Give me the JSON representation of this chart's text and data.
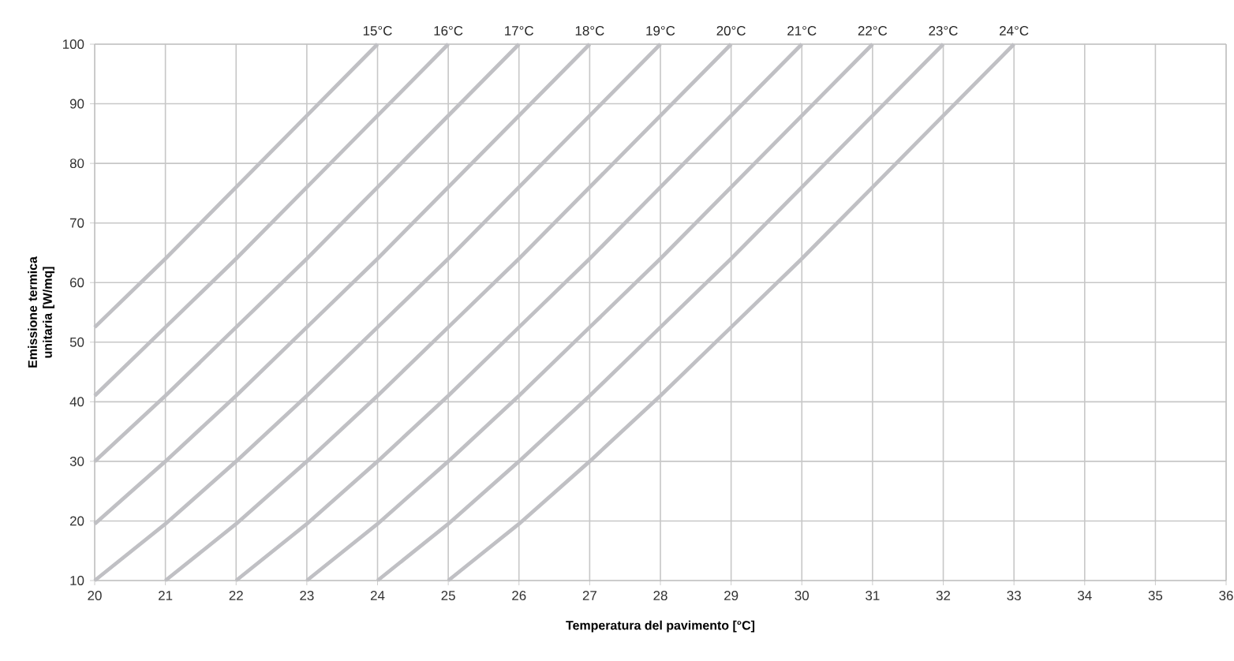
{
  "chart_data": {
    "type": "line",
    "xlabel": "Temperatura del pavimento [°C]",
    "ylabel": "Emissione termica unitaria [W/mq]",
    "xlim": [
      20,
      36
    ],
    "xticks": [
      20,
      21,
      22,
      23,
      24,
      25,
      26,
      27,
      28,
      29,
      30,
      31,
      32,
      33,
      34,
      35,
      36
    ],
    "ylim": [
      10,
      100
    ],
    "yticks": [
      10,
      20,
      30,
      40,
      50,
      60,
      70,
      80,
      90,
      100
    ],
    "grid": true,
    "legend": false,
    "line_style": "solid",
    "series": [
      {
        "name": "15°C",
        "color": "#c0c0c4",
        "x": [
          20,
          21,
          22,
          23,
          24
        ],
        "values": [
          52.5,
          64,
          76,
          88,
          100
        ]
      },
      {
        "name": "16°C",
        "color": "#c0c0c4",
        "x": [
          20,
          21,
          22,
          23,
          24,
          25
        ],
        "values": [
          41,
          52.5,
          64,
          76,
          88,
          100
        ]
      },
      {
        "name": "17°C",
        "color": "#c0c0c4",
        "x": [
          20,
          21,
          22,
          23,
          24,
          25,
          26
        ],
        "values": [
          30,
          41,
          52.5,
          64,
          76,
          88,
          100
        ]
      },
      {
        "name": "18°C",
        "color": "#c0c0c4",
        "x": [
          20,
          21,
          22,
          23,
          24,
          25,
          26,
          27
        ],
        "values": [
          19.5,
          30,
          41,
          52.5,
          64,
          76,
          88,
          100
        ]
      },
      {
        "name": "19°C",
        "color": "#c0c0c4",
        "x": [
          20,
          21,
          22,
          23,
          24,
          25,
          26,
          27,
          28
        ],
        "values": [
          10,
          19.5,
          30,
          41,
          52.5,
          64,
          76,
          88,
          100
        ]
      },
      {
        "name": "20°C",
        "color": "#c0c0c4",
        "x": [
          21,
          22,
          23,
          24,
          25,
          26,
          27,
          28,
          29
        ],
        "values": [
          10,
          19.5,
          30,
          41,
          52.5,
          64,
          76,
          88,
          100
        ]
      },
      {
        "name": "21°C",
        "color": "#c0c0c4",
        "x": [
          22,
          23,
          24,
          25,
          26,
          27,
          28,
          29,
          30
        ],
        "values": [
          10,
          19.5,
          30,
          41,
          52.5,
          64,
          76,
          88,
          100
        ]
      },
      {
        "name": "22°C",
        "color": "#c0c0c4",
        "x": [
          23,
          24,
          25,
          26,
          27,
          28,
          29,
          30,
          31
        ],
        "values": [
          10,
          19.5,
          30,
          41,
          52.5,
          64,
          76,
          88,
          100
        ]
      },
      {
        "name": "23°C",
        "color": "#c0c0c4",
        "x": [
          24,
          25,
          26,
          27,
          28,
          29,
          30,
          31,
          32
        ],
        "values": [
          10,
          19.5,
          30,
          41,
          52.5,
          64,
          76,
          88,
          100
        ]
      },
      {
        "name": "24°C",
        "color": "#c0c0c4",
        "x": [
          25,
          26,
          27,
          28,
          29,
          30,
          31,
          32,
          33
        ],
        "values": [
          10,
          19.5,
          30,
          41,
          52.5,
          64,
          76,
          88,
          100
        ]
      }
    ]
  }
}
